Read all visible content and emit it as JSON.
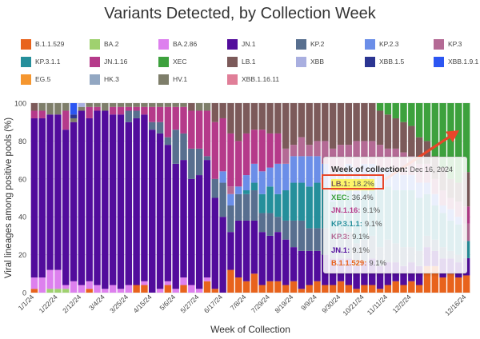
{
  "chart_data": {
    "type": "bar",
    "stacked": true,
    "title": "Variants Detected, by Collection Week",
    "xlabel": "Week of Collection",
    "ylabel": "Viral lineages among positive pools (%)",
    "ylim": [
      0,
      100
    ],
    "yticks": [
      0,
      20,
      40,
      60,
      80,
      100
    ],
    "x_tick_labels": [
      "1/1/24",
      "1/22/24",
      "2/12/24",
      "3/4/24",
      "3/25/24",
      "4/15/24",
      "5/6/24",
      "5/27/24",
      "6/17/24",
      "7/8/24",
      "7/29/24",
      "8/19/24",
      "9/9/24",
      "9/30/24",
      "10/21/24",
      "11/11/24",
      "12/2/24",
      "12/16/24"
    ],
    "grid": true,
    "legend_position": "top",
    "lineage_colors": {
      "B.1.1.529": "#e8631c",
      "BA.2": "#9fd16f",
      "BA.2.86": "#dd80ee",
      "JN.1": "#520c9c",
      "KP.2": "#586f8f",
      "KP.2.3": "#6b8ee8",
      "KP.3": "#b46a95",
      "KP.3.1.1": "#258f9b",
      "JN.1.16": "#b53a8a",
      "XEC": "#3da13d",
      "LB.1": "#7c5a5a",
      "XBB": "#a9afe0",
      "XBB.1.5": "#2b3592",
      "XBB.1.9.1": "#2c56f2",
      "EG.5": "#f5962f",
      "HK.3": "#92a7c2",
      "HV.1": "#7e7e6a",
      "XBB.1.16.11": "#e07e98"
    },
    "stack_order": [
      "B.1.1.529",
      "EG.5",
      "BA.2",
      "BA.2.86",
      "XBB.1.16.11",
      "JN.1",
      "KP.2",
      "HK.3",
      "KP.3.1.1",
      "KP.2.3",
      "KP.3",
      "JN.1.16",
      "HV.1",
      "LB.1",
      "XEC",
      "XBB",
      "XBB.1.5",
      "XBB.1.9.1"
    ],
    "weeks": [
      {
        "B.1.1.529": 2,
        "BA.2.86": 6,
        "JN.1": 84,
        "KP.2": 0,
        "JN.1.16": 4,
        "LB.1": 4
      },
      {
        "B.1.1.529": 0,
        "BA.2.86": 8,
        "JN.1": 84,
        "JN.1.16": 4,
        "HV.1": 4
      },
      {
        "B.1.1.529": 0,
        "BA.2.86": 10,
        "JN.1": 82,
        "BA.2": 2,
        "HV.1": 6
      },
      {
        "B.1.1.529": 0,
        "BA.2.86": 10,
        "JN.1": 82,
        "BA.2": 2,
        "HV.1": 6
      },
      {
        "B.1.1.529": 0,
        "BA.2.86": 2,
        "JN.1": 82,
        "JN.1.16": 10,
        "BA.2": 2,
        "HV.1": 4
      },
      {
        "B.1.1.529": 0,
        "BA.2.86": 6,
        "JN.1": 84,
        "XBB.1.5": 2,
        "XBB.1.9.1": 6,
        "HV.1": 2
      },
      {
        "B.1.1.529": 0,
        "BA.2.86": 4,
        "JN.1": 92,
        "XBB": 2,
        "HV.1": 2
      },
      {
        "B.1.1.529": 2,
        "BA.2.86": 4,
        "JN.1": 86,
        "JN.1.16": 6,
        "HV.1": 2
      },
      {
        "B.1.1.529": 0,
        "BA.2.86": 4,
        "JN.1": 92,
        "JN.1.16": 2,
        "HV.1": 2
      },
      {
        "B.1.1.529": 0,
        "BA.2.86": 2,
        "JN.1": 94,
        "HV.1": 4
      },
      {
        "B.1.1.529": 0,
        "BA.2.86": 4,
        "JN.1": 90,
        "JN.1.16": 4,
        "HV.1": 2
      },
      {
        "B.1.1.529": 0,
        "BA.2.86": 2,
        "JN.1": 92,
        "JN.1.16": 4,
        "HV.1": 2
      },
      {
        "B.1.1.529": 0,
        "BA.2.86": 4,
        "JN.1": 86,
        "KP.2": 6,
        "JN.1.16": 2,
        "HV.1": 2
      },
      {
        "B.1.1.529": 4,
        "BA.2.86": 0,
        "JN.1": 88,
        "KP.2": 4,
        "JN.1.16": 2,
        "HV.1": 2
      },
      {
        "B.1.1.529": 4,
        "BA.2.86": 2,
        "JN.1": 88,
        "KP.2": 0,
        "JN.1.16": 4,
        "HV.1": 2
      },
      {
        "B.1.1.529": 0,
        "BA.2.86": 0,
        "JN.1": 86,
        "KP.2": 4,
        "JN.1.16": 8,
        "HV.1": 2
      },
      {
        "B.1.1.529": 0,
        "BA.2.86": 2,
        "JN.1": 82,
        "KP.2": 6,
        "JN.1.16": 8,
        "HV.1": 2
      },
      {
        "B.1.1.529": 4,
        "BA.2.86": 2,
        "JN.1": 72,
        "KP.2": 4,
        "JN.1.16": 16,
        "HV.1": 2
      },
      {
        "B.1.1.529": 0,
        "BA.2.86": 2,
        "JN.1": 66,
        "KP.2": 18,
        "JN.1.16": 12,
        "HV.1": 2
      },
      {
        "B.1.1.529": 4,
        "BA.2.86": 4,
        "JN.1": 62,
        "KP.2": 14,
        "JN.1.16": 14,
        "HV.1": 2
      },
      {
        "B.1.1.529": 0,
        "BA.2.86": 4,
        "JN.1": 56,
        "KP.2": 16,
        "JN.1.16": 20,
        "LB.1": 4
      },
      {
        "B.1.1.529": 0,
        "BA.2.86": 2,
        "JN.1": 60,
        "KP.2": 14,
        "JN.1.16": 20,
        "HV.1": 4
      },
      {
        "B.1.1.529": 6,
        "BA.2.86": 2,
        "JN.1": 62,
        "KP.2": 2,
        "JN.1.16": 24,
        "HV.1": 4
      },
      {
        "B.1.1.529": 2,
        "BA.2.86": 0,
        "JN.1": 48,
        "KP.2": 10,
        "JN.1.16": 30,
        "LB.1": 10
      },
      {
        "B.1.1.529": 0,
        "BA.2.86": 0,
        "JN.1": 40,
        "KP.2": 18,
        "KP.2.3": 6,
        "JN.1.16": 28,
        "LB.1": 8
      },
      {
        "B.1.1.529": 12,
        "BA.2.86": 0,
        "JN.1": 20,
        "KP.2": 14,
        "KP.2.3": 6,
        "KP.3": 4,
        "JN.1.16": 28,
        "LB.1": 16
      },
      {
        "B.1.1.529": 8,
        "BA.2.86": 0,
        "JN.1": 30,
        "KP.2": 14,
        "KP.2.3": 4,
        "JN.1.16": 24,
        "LB.1": 20
      },
      {
        "B.1.1.529": 6,
        "BA.2.86": 0,
        "JN.1": 32,
        "KP.2": 14,
        "KP.2.3": 8,
        "KP.3.1.1": 2,
        "JN.1.16": 22,
        "LB.1": 16
      },
      {
        "B.1.1.529": 10,
        "BA.2.86": 0,
        "JN.1": 28,
        "KP.2": 16,
        "KP.2.3": 10,
        "KP.3.1.1": 4,
        "JN.1.16": 18,
        "LB.1": 14
      },
      {
        "B.1.1.529": 4,
        "BA.2.86": 0,
        "JN.1": 28,
        "KP.2": 10,
        "KP.2.3": 12,
        "KP.3.1.1": 10,
        "JN.1.16": 22,
        "LB.1": 14
      },
      {
        "B.1.1.529": 6,
        "BA.2.86": 0,
        "JN.1": 24,
        "KP.2": 12,
        "KP.2.3": 10,
        "KP.3.1.1": 14,
        "JN.1.16": 18,
        "LB.1": 16
      },
      {
        "B.1.1.529": 6,
        "BA.2.86": 0,
        "JN.1": 26,
        "KP.2": 8,
        "KP.2.3": 16,
        "KP.3.1.1": 12,
        "JN.1.16": 16,
        "LB.1": 16
      },
      {
        "B.1.1.529": 4,
        "BA.2.86": 0,
        "JN.1": 24,
        "KP.2": 10,
        "KP.2.3": 14,
        "KP.3.1.1": 16,
        "KP.3": 8,
        "LB.1": 24
      },
      {
        "B.1.1.529": 6,
        "BA.2.86": 0,
        "JN.1": 18,
        "KP.2": 14,
        "KP.2.3": 14,
        "KP.3.1.1": 20,
        "KP.3": 6,
        "LB.1": 22
      },
      {
        "B.1.1.529": 2,
        "BA.2.86": 0,
        "JN.1": 20,
        "KP.2": 16,
        "KP.2.3": 14,
        "KP.3.1.1": 20,
        "KP.3": 10,
        "LB.1": 18
      },
      {
        "B.1.1.529": 4,
        "BA.2.86": 0,
        "JN.1": 18,
        "KP.2": 12,
        "KP.2.3": 16,
        "KP.3.1.1": 22,
        "KP.3": 6,
        "LB.1": 22
      },
      {
        "B.1.1.529": 6,
        "BA.2.86": 0,
        "JN.1": 16,
        "KP.2": 12,
        "KP.2.3": 14,
        "KP.3.1.1": 24,
        "KP.3": 8,
        "LB.1": 20
      },
      {
        "B.1.1.529": 4,
        "BA.2.86": 0,
        "JN.1": 16,
        "KP.2": 14,
        "KP.2.3": 12,
        "KP.3.1.1": 22,
        "KP.3": 12,
        "LB.1": 20
      },
      {
        "B.1.1.529": 4,
        "BA.2.86": 0,
        "JN.1": 14,
        "KP.2": 10,
        "KP.2.3": 14,
        "KP.3.1.1": 20,
        "KP.3": 14,
        "LB.1": 24
      },
      {
        "B.1.1.529": 6,
        "BA.2.86": 0,
        "JN.1": 12,
        "KP.2": 10,
        "KP.2.3": 12,
        "KP.3.1.1": 24,
        "KP.3": 14,
        "LB.1": 22
      },
      {
        "B.1.1.529": 4,
        "BA.2.86": 0,
        "JN.1": 14,
        "KP.2": 14,
        "KP.2.3": 12,
        "KP.3.1.1": 24,
        "KP.3": 10,
        "LB.1": 22
      },
      {
        "B.1.1.529": 2,
        "BA.2.86": 0,
        "JN.1": 12,
        "KP.2": 12,
        "KP.2.3": 14,
        "KP.3.1.1": 26,
        "KP.3": 14,
        "LB.1": 20
      },
      {
        "B.1.1.529": 4,
        "BA.2.86": 0,
        "JN.1": 12,
        "KP.2": 12,
        "KP.2.3": 12,
        "KP.3.1.1": 28,
        "KP.3": 12,
        "LB.1": 20
      },
      {
        "B.1.1.529": 4,
        "BA.2.86": 0,
        "JN.1": 14,
        "KP.2": 12,
        "KP.2.3": 10,
        "KP.3.1.1": 28,
        "KP.3": 12,
        "LB.1": 20
      },
      {
        "B.1.1.529": 2,
        "BA.2.86": 0,
        "JN.1": 12,
        "KP.2": 10,
        "KP.2.3": 12,
        "KP.3.1.1": 30,
        "KP.3": 12,
        "XEC": 4,
        "LB.1": 18
      },
      {
        "B.1.1.529": 4,
        "BA.2.86": 0,
        "JN.1": 12,
        "KP.2": 12,
        "KP.2.3": 10,
        "KP.3.1.1": 28,
        "KP.3": 10,
        "XEC": 6,
        "LB.1": 18
      },
      {
        "B.1.1.529": 6,
        "BA.2.86": 0,
        "JN.1": 10,
        "KP.2": 10,
        "KP.2.3": 10,
        "KP.3.1.1": 28,
        "KP.3": 12,
        "XEC": 8,
        "LB.1": 16
      },
      {
        "B.1.1.529": 4,
        "BA.2.86": 0,
        "JN.1": 10,
        "KP.2": 10,
        "KP.2.3": 8,
        "KP.3.1.1": 30,
        "KP.3": 12,
        "XEC": 10,
        "LB.1": 16
      },
      {
        "B.1.1.529": 6,
        "BA.2.86": 0,
        "JN.1": 10,
        "KP.2": 8,
        "KP.2.3": 8,
        "KP.3.1.1": 30,
        "KP.3": 10,
        "XEC": 12,
        "LB.1": 16
      },
      {
        "B.1.1.529": 4,
        "BA.2.86": 0,
        "JN.1": 10,
        "KP.2": 8,
        "KP.2.3": 8,
        "KP.3.1.1": 28,
        "KP.3": 10,
        "XEC": 18,
        "LB.1": 14
      },
      {
        "B.1.1.529": 14,
        "BA.2.86": 0,
        "JN.1": 10,
        "KP.2": 6,
        "KP.2.3": 6,
        "KP.3.1.1": 22,
        "KP.3": 10,
        "XEC": 20,
        "LB.1": 12
      },
      {
        "B.1.1.529": 14,
        "BA.2.86": 0,
        "JN.1": 8,
        "KP.2": 6,
        "KP.2.3": 6,
        "KP.3.1.1": 18,
        "KP.3": 8,
        "XEC": 28,
        "LB.1": 12
      },
      {
        "B.1.1.529": 8,
        "BA.2.86": 0,
        "JN.1": 10,
        "KP.2": 6,
        "KP.2.3": 4,
        "KP.3.1.1": 18,
        "KP.3": 8,
        "XEC": 34,
        "LB.1": 12
      },
      {
        "B.1.1.529": 10,
        "BA.2.86": 0,
        "JN.1": 8,
        "KP.2": 4,
        "KP.2.3": 6,
        "KP.3.1.1": 16,
        "KP.3": 6,
        "XEC": 40,
        "LB.1": 10
      },
      {
        "B.1.1.529": 8,
        "BA.2.86": 0,
        "JN.1": 8,
        "KP.2": 4,
        "KP.2.3": 4,
        "KP.3.1.1": 16,
        "KP.3": 8,
        "XEC": 42,
        "LB.1": 10
      },
      {
        "B.1.1.529": 9.1,
        "BA.2.86": 0,
        "JN.1": 9.1,
        "KP.3.1.1": 9.1,
        "KP.3": 9.1,
        "JN.1.16": 9.1,
        "XEC": 36.4,
        "LB.1": 18.2
      }
    ]
  },
  "legend": [
    {
      "name": "B.1.1.529",
      "color": "#e8631c"
    },
    {
      "name": "BA.2",
      "color": "#9fd16f"
    },
    {
      "name": "BA.2.86",
      "color": "#dd80ee"
    },
    {
      "name": "JN.1",
      "color": "#520c9c"
    },
    {
      "name": "KP.2",
      "color": "#586f8f"
    },
    {
      "name": "KP.2.3",
      "color": "#6b8ee8"
    },
    {
      "name": "KP.3",
      "color": "#b46a95"
    },
    {
      "name": "KP.3.1.1",
      "color": "#258f9b"
    },
    {
      "name": "JN.1.16",
      "color": "#b53a8a"
    },
    {
      "name": "XEC",
      "color": "#3da13d"
    },
    {
      "name": "LB.1",
      "color": "#7c5a5a"
    },
    {
      "name": "XBB",
      "color": "#a9afe0"
    },
    {
      "name": "XBB.1.5",
      "color": "#2b3592"
    },
    {
      "name": "XBB.1.9.1",
      "color": "#2c56f2"
    },
    {
      "name": "EG.5",
      "color": "#f5962f"
    },
    {
      "name": "HK.3",
      "color": "#92a7c2"
    },
    {
      "name": "HV.1",
      "color": "#7e7e6a"
    },
    {
      "name": "XBB.1.16.11",
      "color": "#e07e98"
    }
  ],
  "tooltip": {
    "header_label": "Week of collection:",
    "header_value": "Dec 16, 2024",
    "rows": [
      {
        "lineage": "LB.1:",
        "pct": "18.2%",
        "color": "#7c5a5a",
        "highlight": true
      },
      {
        "lineage": "XEC:",
        "pct": "36.4%",
        "color": "#3da13d"
      },
      {
        "lineage": "JN.1.16:",
        "pct": "9.1%",
        "color": "#b53a8a"
      },
      {
        "lineage": "KP.3.1.1:",
        "pct": "9.1%",
        "color": "#258f9b"
      },
      {
        "lineage": "KP.3:",
        "pct": "9.1%",
        "color": "#b46a95"
      },
      {
        "lineage": "JN.1:",
        "pct": "9.1%",
        "color": "#520c9c"
      },
      {
        "lineage": "B.1.1.529:",
        "pct": "9.1%",
        "color": "#e8631c"
      }
    ]
  },
  "annotation_color": "#e8462a"
}
